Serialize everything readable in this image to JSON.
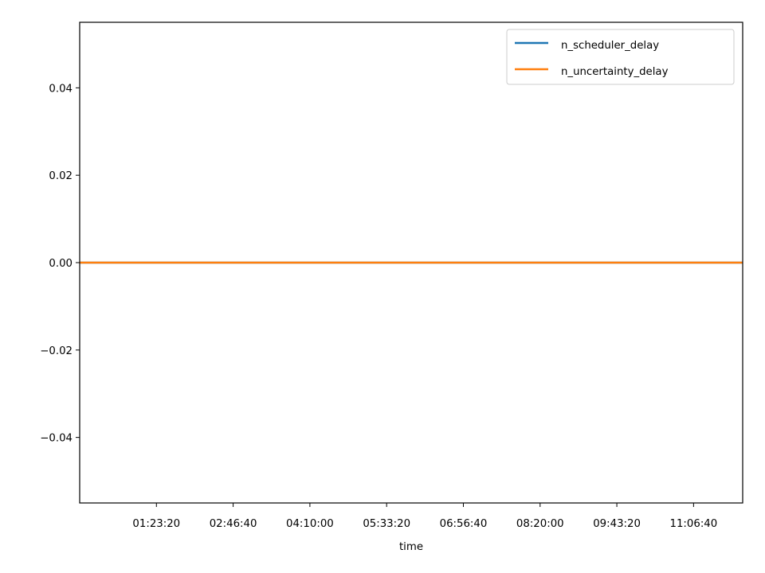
{
  "chart_data": {
    "type": "line",
    "title": "",
    "xlabel": "time",
    "ylabel": "",
    "x_ticks": [
      "01:23:20",
      "02:46:40",
      "04:10:00",
      "05:33:20",
      "06:56:40",
      "08:20:00",
      "09:43:20",
      "11:06:40"
    ],
    "x_tick_seconds": [
      5000,
      10000,
      15000,
      20000,
      25000,
      30000,
      35000,
      40000
    ],
    "xlim_seconds": [
      0,
      43200
    ],
    "y_ticks": [
      "0.04",
      "0.02",
      "0.00",
      "−0.02",
      "−0.04"
    ],
    "y_tick_values": [
      0.04,
      0.02,
      0.0,
      -0.02,
      -0.04
    ],
    "ylim": [
      -0.055,
      0.055
    ],
    "grid": false,
    "legend_position": "top-right",
    "series": [
      {
        "name": "n_scheduler_delay",
        "color": "#1f77b4",
        "x": [
          0,
          43200
        ],
        "values": [
          0,
          0
        ]
      },
      {
        "name": "n_uncertainty_delay",
        "color": "#ff7f0e",
        "x": [
          0,
          43200
        ],
        "values": [
          0,
          0
        ]
      }
    ]
  }
}
